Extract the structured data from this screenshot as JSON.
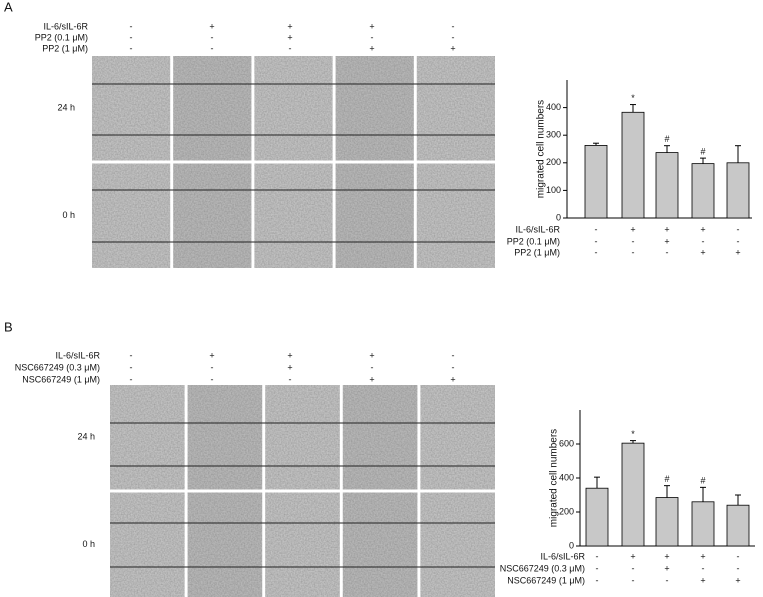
{
  "chart_data": [
    {
      "type": "bar",
      "panel_label": "A",
      "ylabel": "migrated cell numbers",
      "image_rows": [
        "24 h",
        "0 h"
      ],
      "conditions": [
        {
          "name": "IL-6/sIL-6R",
          "signs": [
            "-",
            "+",
            "+",
            "+",
            "-"
          ]
        },
        {
          "name": "PP2 (0.1 μM)",
          "signs": [
            "-",
            "-",
            "+",
            "-",
            "-"
          ]
        },
        {
          "name": "PP2 (1 μM)",
          "signs": [
            "-",
            "-",
            "-",
            "+",
            "+"
          ]
        }
      ],
      "values": [
        263,
        383,
        237,
        197,
        200
      ],
      "errors": [
        8,
        28,
        25,
        20,
        62
      ],
      "annotations": [
        null,
        "*",
        "#",
        "#",
        null
      ],
      "ylim": [
        0,
        500
      ],
      "yticks": [
        0,
        100,
        200,
        300,
        400
      ],
      "color": "#c8c8c8"
    },
    {
      "type": "bar",
      "panel_label": "B",
      "ylabel": "migrated cell numbers",
      "image_rows": [
        "24 h",
        "0 h"
      ],
      "conditions": [
        {
          "name": "IL-6/sIL-6R",
          "signs": [
            "-",
            "+",
            "+",
            "+",
            "-"
          ]
        },
        {
          "name": "NSC667249 (0.3 μM)",
          "signs": [
            "-",
            "-",
            "+",
            "-",
            "-"
          ]
        },
        {
          "name": "NSC667249 (1 μM)",
          "signs": [
            "-",
            "-",
            "-",
            "+",
            "+"
          ]
        }
      ],
      "values": [
        340,
        605,
        285,
        260,
        240
      ],
      "errors": [
        65,
        15,
        70,
        85,
        60
      ],
      "annotations": [
        null,
        "*",
        "#",
        "#",
        null
      ],
      "ylim": [
        0,
        800
      ],
      "yticks": [
        0,
        200,
        400,
        600
      ],
      "color": "#c8c8c8"
    }
  ]
}
